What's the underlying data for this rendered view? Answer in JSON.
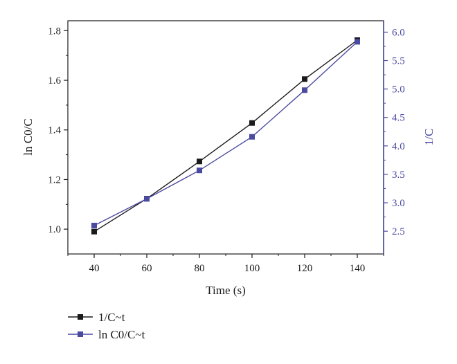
{
  "chart_data": {
    "type": "line",
    "x": [
      40,
      60,
      80,
      100,
      120,
      140
    ],
    "xlabel": "Time (s)",
    "xlim": [
      30,
      150
    ],
    "xticks": [
      40,
      60,
      80,
      100,
      120,
      140
    ],
    "ylabel_left": "ln C0/C",
    "ylim_left": [
      0.9,
      1.84
    ],
    "yticks_left": [
      "1.0",
      "1.2",
      "1.4",
      "1.6",
      "1.8"
    ],
    "ylabel_right": "1/C",
    "ylim_right": [
      2.1,
      6.2
    ],
    "yticks_right": [
      "2.5",
      "3.0",
      "3.5",
      "4.0",
      "4.5",
      "5.0",
      "5.5",
      "6.0"
    ],
    "grid": false,
    "legend_position": "bottom-left",
    "series": [
      {
        "name": "1/C~t",
        "axis": "left",
        "color": "#1a1a1a",
        "marker": "square",
        "values": [
          0.99,
          1.123,
          1.273,
          1.428,
          1.605,
          1.762
        ]
      },
      {
        "name": "ln C0/C~t",
        "axis": "right",
        "color": "#4a4aa0",
        "marker": "square",
        "values": [
          2.6,
          3.07,
          3.57,
          4.16,
          4.98,
          5.83
        ]
      }
    ]
  }
}
